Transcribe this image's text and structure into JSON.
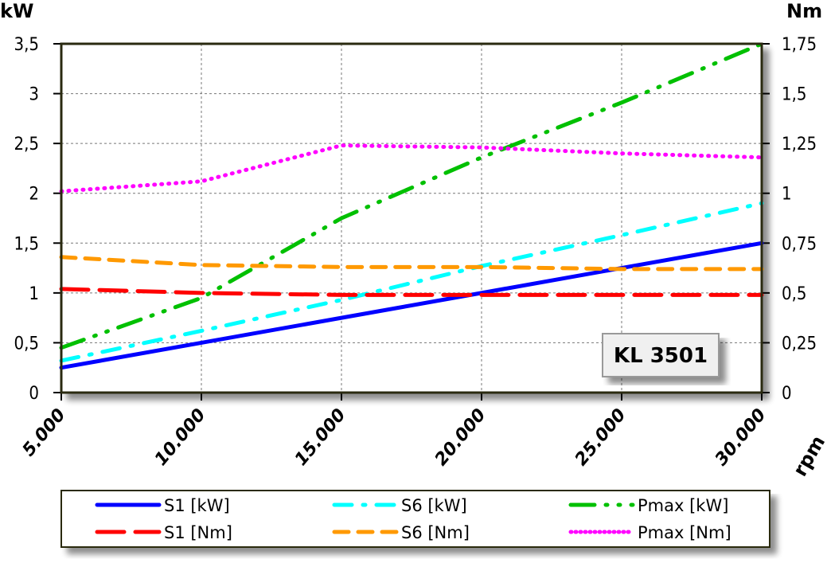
{
  "chart_data": {
    "type": "line",
    "title": "",
    "badge": "KL 3501",
    "xlabel": "rpm",
    "ylabel_left": "kW",
    "ylabel_right": "Nm",
    "xlim": [
      5000,
      30000
    ],
    "ylim_left": [
      0,
      3.5
    ],
    "ylim_right": [
      0,
      1.75
    ],
    "grid": true,
    "legend_position": "bottom",
    "x": [
      5000,
      10000,
      15000,
      20000,
      25000,
      30000
    ],
    "x_tick_labels": [
      "5.000",
      "10.000",
      "15.000",
      "20.000",
      "25.000",
      "30.000"
    ],
    "y_left_ticks": [
      0,
      0.5,
      1,
      1.5,
      2,
      2.5,
      3,
      3.5
    ],
    "y_left_tick_labels": [
      "0",
      "0,5",
      "1",
      "1,5",
      "2",
      "2,5",
      "3",
      "3,5"
    ],
    "y_right_ticks": [
      0,
      0.25,
      0.5,
      0.75,
      1,
      1.25,
      1.5,
      1.75
    ],
    "y_right_tick_labels": [
      "0",
      "0,25",
      "0,5",
      "0,75",
      "1",
      "1,25",
      "1,5",
      "1,75"
    ],
    "series": [
      {
        "name": "S1 [kW]",
        "axis": "left",
        "color": "#0000ff",
        "style": "solid",
        "values": [
          0.25,
          0.5,
          0.75,
          1.0,
          1.25,
          1.5
        ]
      },
      {
        "name": "S6 [kW]",
        "axis": "left",
        "color": "#00ffff",
        "style": "dash-dot",
        "values": [
          0.32,
          0.62,
          0.93,
          1.27,
          1.58,
          1.9
        ]
      },
      {
        "name": "Pmax [kW]",
        "axis": "left",
        "color": "#00c000",
        "style": "dash-dot-dot",
        "values": [
          0.45,
          0.95,
          1.75,
          2.36,
          2.91,
          3.5
        ]
      },
      {
        "name": "S1 [Nm]",
        "axis": "right",
        "color": "#ff0000",
        "style": "long-dash",
        "values": [
          0.52,
          0.5,
          0.49,
          0.49,
          0.49,
          0.49
        ]
      },
      {
        "name": "S6 [Nm]",
        "axis": "right",
        "color": "#ff9900",
        "style": "dash",
        "values": [
          0.68,
          0.64,
          0.63,
          0.63,
          0.62,
          0.62
        ]
      },
      {
        "name": "Pmax [Nm]",
        "axis": "right",
        "color": "#ff00ff",
        "style": "dotted",
        "values": [
          1.01,
          1.06,
          1.24,
          1.23,
          1.2,
          1.18
        ]
      }
    ]
  }
}
